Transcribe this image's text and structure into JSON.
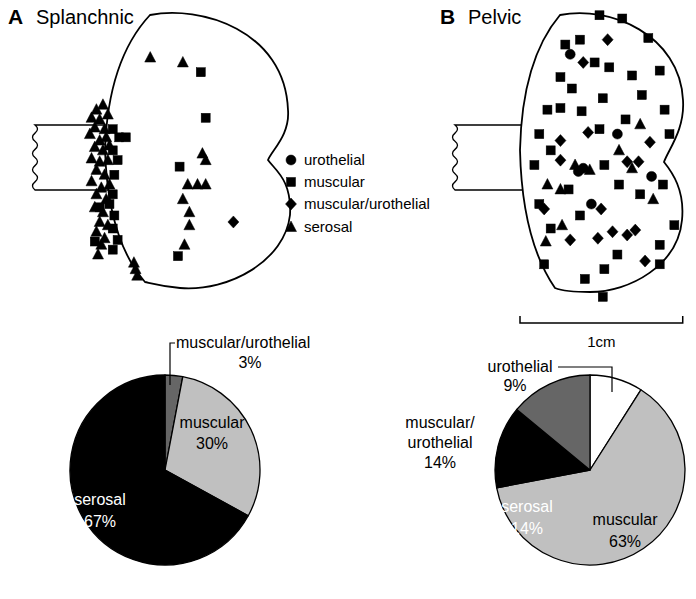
{
  "chart_data": [
    {
      "type": "scatter",
      "panel_label": "A",
      "title": "Splanchnic",
      "tick_labels": false,
      "xlim": [
        0,
        13
      ],
      "ylim": [
        18,
        0
      ],
      "series": [
        {
          "name": "urothelial",
          "marker": "circle",
          "color": "#000000",
          "x": [],
          "values": []
        },
        {
          "name": "muscular",
          "marker": "square",
          "color": "#000000",
          "x": [
            7.1,
            7.4,
            5.8,
            5.7,
            2.1,
            2.5,
            1.7,
            2.0,
            1.8,
            1.7,
            1.5,
            1.8,
            1.7,
            2.0,
            1.7,
            1.7,
            0.9,
            0.6
          ],
          "values": [
            3.7,
            6.5,
            9.5,
            15.0,
            7.7,
            7.7,
            8.5,
            9.1,
            10.0,
            11.2,
            11.8,
            12.5,
            13.3,
            14.0,
            14.6,
            7.2,
            12.0,
            14.1
          ]
        },
        {
          "name": "muscular/urothelial",
          "marker": "diamond",
          "color": "#000000",
          "x": [
            9.1
          ],
          "values": [
            12.9
          ]
        },
        {
          "name": "serosal",
          "marker": "triangle",
          "color": "#000000",
          "x": [
            0.7,
            1.1,
            0.4,
            0.9,
            1.4,
            0.6,
            1.2,
            0.3,
            0.9,
            1.3,
            0.6,
            1.1,
            1.5,
            0.4,
            0.9,
            1.4,
            0.7,
            1.2,
            0.4,
            1.0,
            1.5,
            0.7,
            1.3,
            0.6,
            1.1,
            0.9,
            1.4,
            0.7,
            1.2,
            1.0,
            0.8,
            3.0,
            3.1,
            3.2,
            4.0,
            6.0,
            7.2,
            7.4,
            6.9,
            7.4,
            6.3,
            6.0,
            6.4,
            6.4,
            6.1
          ],
          "values": [
            6.0,
            5.7,
            6.5,
            6.6,
            6.3,
            7.1,
            7.2,
            7.5,
            7.9,
            7.7,
            8.3,
            8.5,
            8.2,
            9.0,
            9.2,
            9.1,
            9.7,
            10.0,
            10.4,
            10.8,
            10.6,
            11.2,
            11.5,
            12.0,
            12.3,
            12.9,
            13.1,
            13.5,
            13.9,
            14.3,
            14.9,
            15.4,
            15.8,
            16.2,
            2.8,
            3.1,
            8.7,
            9.1,
            10.6,
            10.6,
            10.6,
            11.5,
            12.3,
            13.1,
            14.3
          ]
        }
      ]
    },
    {
      "type": "pie",
      "data_labels": true,
      "categories": [
        "muscular/urothelial",
        "muscular",
        "serosal"
      ],
      "values": [
        3,
        30,
        67
      ],
      "value_labels": [
        "3%",
        "30%",
        "67%"
      ],
      "colors": [
        "#666666",
        "#c0c0c0",
        "#000000"
      ]
    },
    {
      "type": "scatter",
      "panel_label": "B",
      "title": "Pelvic",
      "tick_labels": false,
      "xlim": [
        0,
        11
      ],
      "ylim": [
        18,
        0
      ],
      "scale_bar": {
        "value": 10,
        "label": "1cm"
      },
      "series": [
        {
          "marker": "circle",
          "color": "#000000",
          "x": [
            3.7,
            6.6,
            4.5,
            5.0,
            8.7,
            4.2
          ],
          "values": [
            2.6,
            7.5,
            9.6,
            11.8,
            10.1,
            9.8
          ]
        },
        {
          "marker": "square",
          "color": "#000000",
          "x": [
            5.5,
            6.9,
            8.5,
            3.4,
            4.3,
            5.2,
            3.1,
            3.8,
            6.1,
            7.5,
            9.2,
            2.3,
            1.8,
            3.1,
            4.4,
            5.7,
            8.1,
            9.5,
            9.8,
            5.5,
            7.1,
            1.5,
            2.5,
            3.6,
            5.8,
            6.7,
            8.0,
            9.4,
            10.1,
            9.2,
            1.8,
            2.5,
            4.3,
            6.6,
            5.8,
            9.2,
            2.1,
            4.6,
            5.7
          ],
          "values": [
            0.2,
            0.4,
            1.6,
            2.0,
            1.7,
            3.1,
            4.0,
            4.7,
            3.4,
            3.9,
            3.6,
            6.0,
            7.5,
            5.9,
            6.1,
            5.3,
            5.1,
            6.0,
            7.5,
            7.2,
            6.6,
            9.4,
            8.5,
            10.9,
            9.4,
            10.6,
            11.2,
            10.6,
            13.1,
            14.3,
            11.8,
            13.3,
            12.5,
            14.9,
            15.8,
            15.5,
            15.5,
            16.4,
            17.5
          ]
        },
        {
          "marker": "diamond",
          "color": "#000000",
          "x": [
            4.5,
            6.0,
            3.1,
            8.6,
            7.9,
            7.2,
            3.1,
            4.8,
            2.1,
            5.6,
            6.3,
            7.2,
            5.4,
            3.7,
            8.3,
            7.7
          ],
          "values": [
            3.1,
            1.7,
            7.9,
            8.0,
            9.2,
            9.2,
            9.1,
            7.4,
            12.1,
            12.1,
            13.5,
            13.7,
            13.9,
            14.0,
            15.3,
            13.4
          ]
        },
        {
          "marker": "triangle",
          "color": "#000000",
          "x": [
            8.0,
            2.3,
            3.1,
            4.0,
            4.9,
            3.2,
            2.2,
            8.8,
            7.5,
            6.7
          ],
          "values": [
            6.9,
            10.6,
            10.9,
            9.4,
            9.7,
            13.1,
            14.1,
            11.5,
            9.6,
            8.5
          ]
        }
      ]
    },
    {
      "type": "pie",
      "data_labels": true,
      "categories": [
        "urothelial",
        "muscular",
        "serosal",
        "muscular/urothelial"
      ],
      "values": [
        9,
        63,
        14,
        14
      ],
      "value_labels": [
        "9%",
        "63%",
        "14%",
        "14%"
      ],
      "colors": [
        "#ffffff",
        "#c0c0c0",
        "#000000",
        "#666666"
      ]
    }
  ]
}
